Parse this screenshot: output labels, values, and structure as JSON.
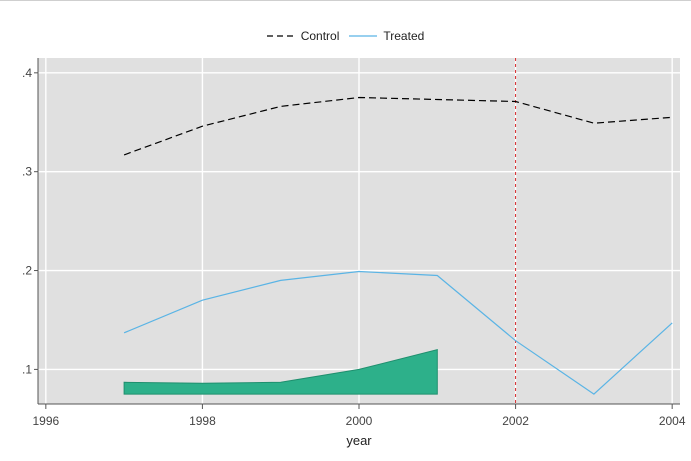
{
  "chart_data": {
    "type": "line",
    "xlabel": "year",
    "ylabel": "",
    "xlim": [
      1995.9,
      2004.1
    ],
    "ylim": [
      0.065,
      0.415
    ],
    "x_ticks": [
      1996,
      1998,
      2000,
      2002,
      2004
    ],
    "x_tick_labels": [
      "1996",
      "1998",
      "2000",
      "2002",
      "2004"
    ],
    "y_ticks": [
      0.1,
      0.2,
      0.3,
      0.4
    ],
    "y_tick_labels": [
      ".1",
      ".2",
      ".3",
      ".4"
    ],
    "grid": true,
    "legend_placement": "top",
    "background_color": "#e0e0e0",
    "grid_color": "#ffffff",
    "series": [
      {
        "name": "Control",
        "style": "dashed",
        "color": "#000000",
        "x": [
          1997,
          1998,
          1999,
          2000,
          2001,
          2002,
          2003,
          2004
        ],
        "values": [
          0.317,
          0.346,
          0.366,
          0.375,
          0.373,
          0.371,
          0.349,
          0.355
        ]
      },
      {
        "name": "Treated",
        "style": "solid",
        "color": "#5ab4e5",
        "x": [
          1997,
          1998,
          1999,
          2000,
          2001,
          2002,
          2003,
          2004
        ],
        "values": [
          0.137,
          0.17,
          0.19,
          0.199,
          0.195,
          0.129,
          0.075,
          0.147
        ]
      }
    ],
    "area": {
      "color": "#2db08a",
      "x": [
        1997,
        1998,
        1999,
        2000,
        2001
      ],
      "upper": [
        0.087,
        0.086,
        0.087,
        0.1,
        0.12
      ],
      "lower": 0.075
    },
    "reference_line": {
      "x": 2002,
      "color": "#d62728",
      "style": "dashed"
    }
  }
}
